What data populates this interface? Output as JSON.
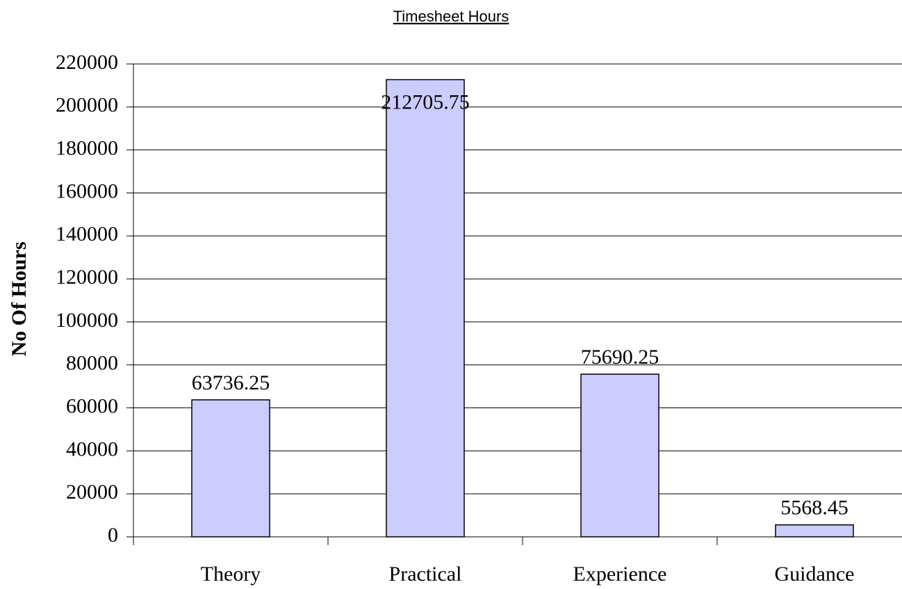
{
  "chart_data": {
    "type": "bar",
    "title": "Timesheet Hours",
    "ylabel": "No Of Hours",
    "categories": [
      "Theory",
      "Practical",
      "Experience",
      "Guidance"
    ],
    "values": [
      63736.25,
      212705.75,
      75690.25,
      5568.45
    ],
    "color": "#ccccff",
    "ylim": [
      0,
      220000
    ],
    "yticks": [
      0,
      20000,
      40000,
      60000,
      80000,
      100000,
      120000,
      140000,
      160000,
      180000,
      200000,
      220000
    ],
    "grid": true
  }
}
